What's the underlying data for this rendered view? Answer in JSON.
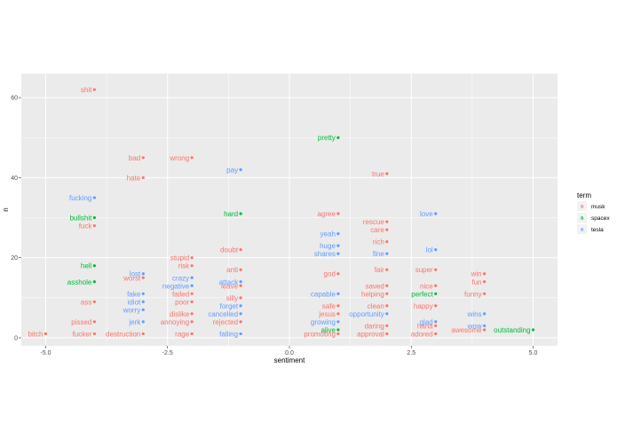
{
  "chart_data": {
    "type": "scatter",
    "title": "",
    "xlabel": "sentiment",
    "ylabel": "n",
    "xlim": [
      -5.5,
      5.5
    ],
    "ylim": [
      -2,
      66
    ],
    "x_ticks": [
      -5.0,
      -2.5,
      0.0,
      2.5,
      5.0
    ],
    "x_tick_labels": [
      "-5.0",
      "-2.5",
      "0.0",
      "2.5",
      "5.0"
    ],
    "y_ticks": [
      0,
      20,
      40,
      60
    ],
    "y_tick_labels": [
      "0",
      "20",
      "40",
      "60"
    ],
    "grid": true,
    "legend": {
      "title": "term",
      "position": "right",
      "entries": [
        {
          "label": "musk",
          "key_letter": "a",
          "color": "#F8766D"
        },
        {
          "label": "spacex",
          "key_letter": "a",
          "color": "#00BA38"
        },
        {
          "label": "tesla",
          "key_letter": "a",
          "color": "#619CFF"
        }
      ]
    },
    "colors": {
      "musk": "#F8766D",
      "spacex": "#00BA38",
      "tesla": "#619CFF"
    },
    "series": [
      {
        "name": "musk",
        "points": [
          {
            "x": -5,
            "y": 1,
            "word": "bitch"
          },
          {
            "x": -4,
            "y": 62,
            "word": "shit"
          },
          {
            "x": -4,
            "y": 28,
            "word": "fuck"
          },
          {
            "x": -4,
            "y": 9,
            "word": "ass"
          },
          {
            "x": -4,
            "y": 4,
            "word": "pissed"
          },
          {
            "x": -4,
            "y": 1,
            "word": "fucker"
          },
          {
            "x": -3,
            "y": 45,
            "word": "bad"
          },
          {
            "x": -3,
            "y": 40,
            "word": "hate"
          },
          {
            "x": -3,
            "y": 15,
            "word": "worst"
          },
          {
            "x": -3,
            "y": 1,
            "word": "destruction"
          },
          {
            "x": -2,
            "y": 45,
            "word": "wrong"
          },
          {
            "x": -2,
            "y": 20,
            "word": "stupid"
          },
          {
            "x": -2,
            "y": 18,
            "word": "risk"
          },
          {
            "x": -2,
            "y": 11,
            "word": "failed"
          },
          {
            "x": -2,
            "y": 9,
            "word": "poor"
          },
          {
            "x": -2,
            "y": 6,
            "word": "dislike"
          },
          {
            "x": -2,
            "y": 4,
            "word": "annoying"
          },
          {
            "x": -2,
            "y": 1,
            "word": "rage"
          },
          {
            "x": -1,
            "y": 22,
            "word": "doubt"
          },
          {
            "x": -1,
            "y": 17,
            "word": "anti"
          },
          {
            "x": -1,
            "y": 13,
            "word": "leave"
          },
          {
            "x": -1,
            "y": 10,
            "word": "silly"
          },
          {
            "x": -1,
            "y": 4,
            "word": "rejected"
          },
          {
            "x": 1,
            "y": 31,
            "word": "agree"
          },
          {
            "x": 1,
            "y": 16,
            "word": "god"
          },
          {
            "x": 1,
            "y": 8,
            "word": "safe"
          },
          {
            "x": 1,
            "y": 6,
            "word": "jesus"
          },
          {
            "x": 1,
            "y": 1,
            "word": "promoting"
          },
          {
            "x": 2,
            "y": 41,
            "word": "true"
          },
          {
            "x": 2,
            "y": 29,
            "word": "rescue"
          },
          {
            "x": 2,
            "y": 27,
            "word": "care"
          },
          {
            "x": 2,
            "y": 24,
            "word": "rich"
          },
          {
            "x": 2,
            "y": 17,
            "word": "fair"
          },
          {
            "x": 2,
            "y": 13,
            "word": "saved"
          },
          {
            "x": 2,
            "y": 11,
            "word": "helping"
          },
          {
            "x": 2,
            "y": 8,
            "word": "clean"
          },
          {
            "x": 2,
            "y": 3,
            "word": "daring"
          },
          {
            "x": 2,
            "y": 1,
            "word": "approval"
          },
          {
            "x": 3,
            "y": 17,
            "word": "super"
          },
          {
            "x": 3,
            "y": 13,
            "word": "nice"
          },
          {
            "x": 3,
            "y": 8,
            "word": "happy"
          },
          {
            "x": 3,
            "y": 3,
            "word": "haha"
          },
          {
            "x": 3,
            "y": 1,
            "word": "adored"
          },
          {
            "x": 4,
            "y": 16,
            "word": "win"
          },
          {
            "x": 4,
            "y": 14,
            "word": "fun"
          },
          {
            "x": 4,
            "y": 11,
            "word": "funny"
          },
          {
            "x": 4,
            "y": 2,
            "word": "awesome"
          }
        ]
      },
      {
        "name": "spacex",
        "points": [
          {
            "x": -4,
            "y": 30,
            "word": "bullshit"
          },
          {
            "x": -4,
            "y": 18,
            "word": "hell"
          },
          {
            "x": -4,
            "y": 14,
            "word": "asshole"
          },
          {
            "x": -1,
            "y": 31,
            "word": "hard"
          },
          {
            "x": 1,
            "y": 50,
            "word": "pretty"
          },
          {
            "x": 1,
            "y": 2,
            "word": "alive"
          },
          {
            "x": 3,
            "y": 11,
            "word": "perfect"
          },
          {
            "x": 5,
            "y": 2,
            "word": "outstanding"
          }
        ]
      },
      {
        "name": "tesla",
        "points": [
          {
            "x": -4,
            "y": 35,
            "word": "fucking"
          },
          {
            "x": -3,
            "y": 16,
            "word": "lost"
          },
          {
            "x": -3,
            "y": 11,
            "word": "fake"
          },
          {
            "x": -3,
            "y": 9,
            "word": "idiot"
          },
          {
            "x": -3,
            "y": 7,
            "word": "worry"
          },
          {
            "x": -3,
            "y": 4,
            "word": "jerk"
          },
          {
            "x": -2,
            "y": 15,
            "word": "crazy"
          },
          {
            "x": -2,
            "y": 13,
            "word": "negative"
          },
          {
            "x": -1,
            "y": 42,
            "word": "pay"
          },
          {
            "x": -1,
            "y": 14,
            "word": "attack"
          },
          {
            "x": -1,
            "y": 8,
            "word": "forget"
          },
          {
            "x": -1,
            "y": 6,
            "word": "cancelled"
          },
          {
            "x": -1,
            "y": 1,
            "word": "falling"
          },
          {
            "x": 1,
            "y": 26,
            "word": "yeah"
          },
          {
            "x": 1,
            "y": 23,
            "word": "huge"
          },
          {
            "x": 1,
            "y": 21,
            "word": "shares"
          },
          {
            "x": 1,
            "y": 11,
            "word": "capable"
          },
          {
            "x": 1,
            "y": 4,
            "word": "growing"
          },
          {
            "x": 2,
            "y": 21,
            "word": "fine"
          },
          {
            "x": 2,
            "y": 6,
            "word": "opportunity"
          },
          {
            "x": 3,
            "y": 31,
            "word": "love"
          },
          {
            "x": 3,
            "y": 22,
            "word": "lol"
          },
          {
            "x": 3,
            "y": 4,
            "word": "glad"
          },
          {
            "x": 4,
            "y": 6,
            "word": "wins"
          },
          {
            "x": 4,
            "y": 3,
            "word": "wow"
          }
        ]
      }
    ]
  }
}
